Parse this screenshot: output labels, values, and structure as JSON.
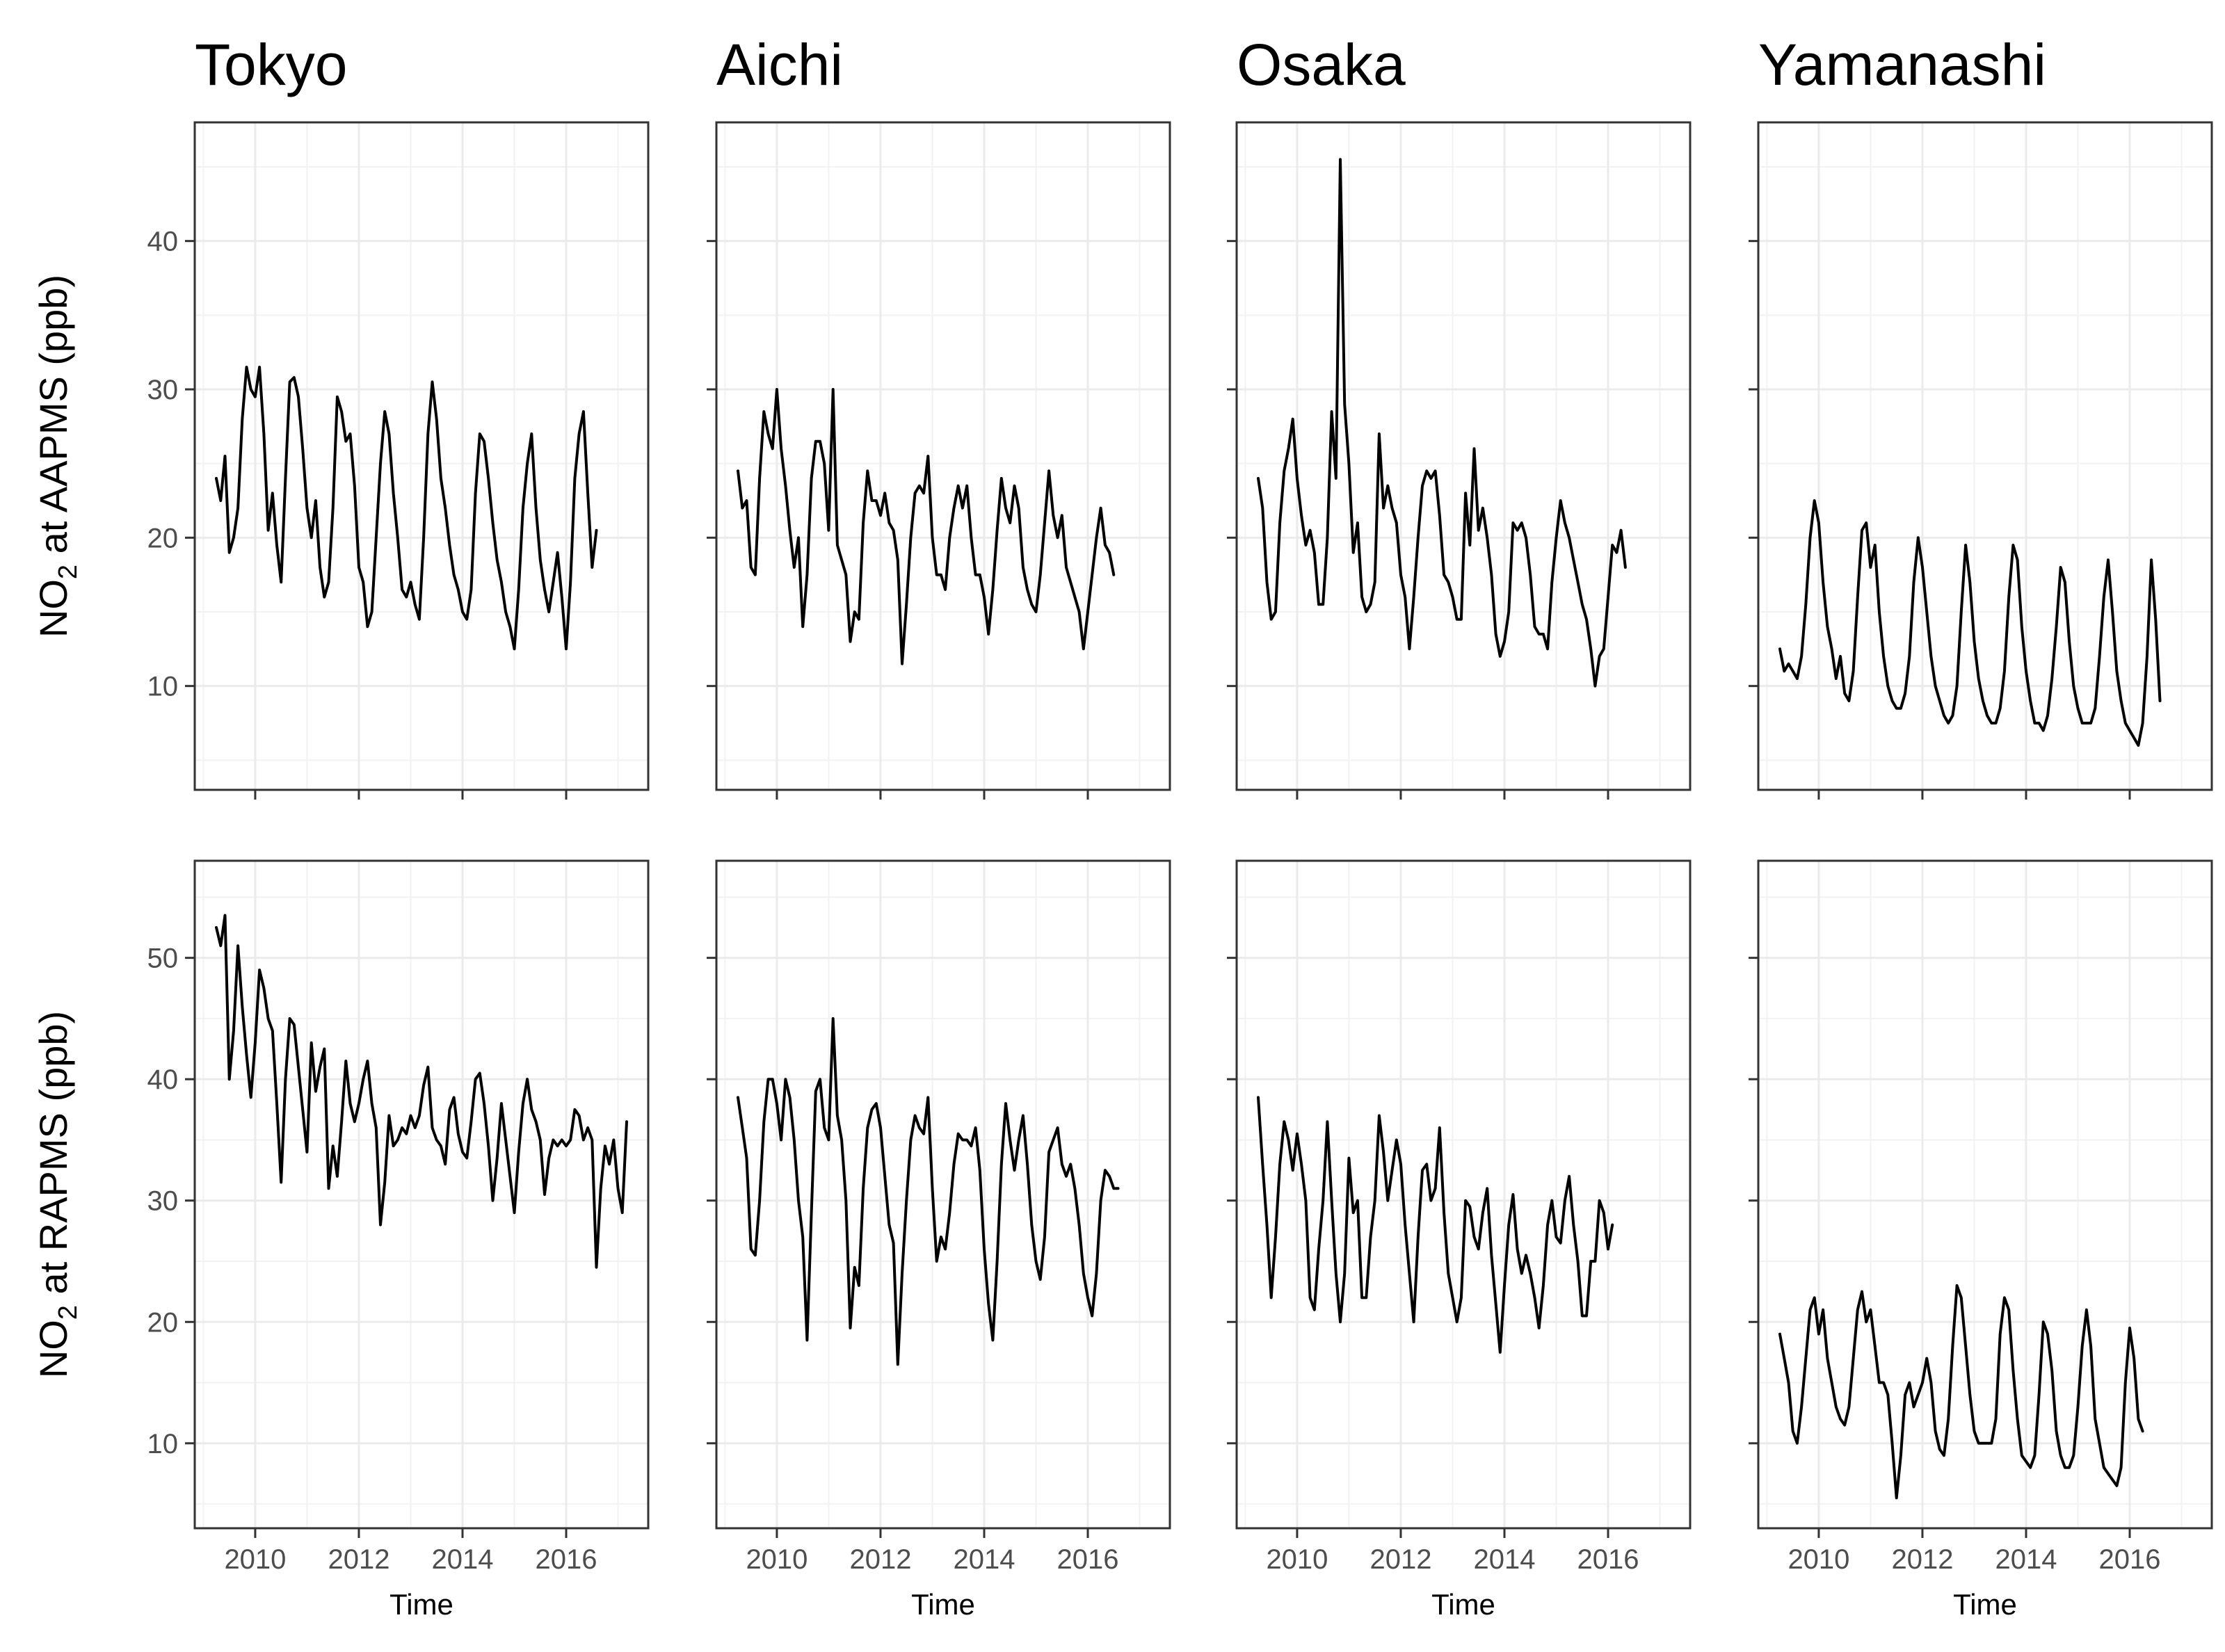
{
  "chart_data": {
    "type": "line",
    "layout": "facet-grid",
    "columns": [
      "Tokyo",
      "Aichi",
      "Osaka",
      "Yamanashi"
    ],
    "rows": [
      {
        "ylabel_main": "NO",
        "ylabel_sub": "2",
        "ylabel_rest": " at AAPMS (ppb)",
        "ylim": [
          3,
          48
        ],
        "yticks": [
          10,
          20,
          30,
          40
        ]
      },
      {
        "ylabel_main": "NO",
        "ylabel_sub": "2",
        "ylabel_rest": " at RAPMS (ppb)",
        "ylim": [
          3,
          58
        ],
        "yticks": [
          10,
          20,
          30,
          40,
          50
        ]
      }
    ],
    "xlabel": "Time",
    "xlim": [
      "2008-11",
      "2017-08"
    ],
    "xticks": [
      "2010",
      "2012",
      "2014",
      "2016"
    ],
    "grid": true,
    "line_color": "#000000",
    "x_start": "2009-04",
    "x_step": "1 month",
    "panels": [
      {
        "row": 0,
        "col": 0,
        "values": [
          24,
          22.5,
          25.5,
          19,
          20,
          22,
          28,
          31.5,
          30,
          29.5,
          31.5,
          27,
          20.5,
          23,
          19.5,
          17,
          24,
          30.5,
          30.8,
          29.5,
          26,
          22,
          20,
          22.5,
          18,
          16,
          17,
          22,
          29.5,
          28.5,
          26.5,
          27,
          23.5,
          18,
          17,
          14,
          15,
          20,
          25,
          28.5,
          27,
          23,
          20,
          16.5,
          16,
          17,
          15.5,
          14.5,
          20,
          27,
          30.5,
          28,
          24,
          22,
          19.5,
          17.5,
          16.5,
          15,
          14.5,
          16.5,
          23,
          27,
          26.5,
          24,
          21,
          18.5,
          17,
          15,
          14,
          12.5,
          16.5,
          22,
          25,
          27,
          22,
          18.5,
          16.5,
          15,
          17,
          19,
          16,
          12.5,
          17,
          24,
          27,
          28.5,
          23,
          18,
          20.5
        ]
      },
      {
        "row": 0,
        "col": 1,
        "values": [
          24.5,
          22,
          22.5,
          18,
          17.5,
          24,
          28.5,
          27,
          26,
          30,
          26,
          23.5,
          20.5,
          18,
          20,
          14,
          17.5,
          24,
          26.5,
          26.5,
          25,
          20.5,
          30,
          19.5,
          18.5,
          17.5,
          13,
          15,
          14.5,
          21,
          24.5,
          22.5,
          22.5,
          21.5,
          23,
          21,
          20.5,
          18.5,
          11.5,
          15.5,
          20,
          23,
          23.5,
          23,
          25.5,
          20,
          17.5,
          17.5,
          16.5,
          20,
          22,
          23.5,
          22,
          23.5,
          20,
          17.5,
          17.5,
          16,
          13.5,
          16.5,
          20.5,
          24,
          22,
          21,
          23.5,
          22,
          18,
          16.5,
          15.5,
          15,
          17.5,
          21,
          24.5,
          21.5,
          20,
          21.5,
          18,
          17,
          16,
          15,
          12.5,
          15,
          17.5,
          20,
          22,
          19.5,
          19,
          17.5
        ]
      },
      {
        "row": 0,
        "col": 2,
        "values": [
          24,
          22,
          17,
          14.5,
          15,
          21,
          24.5,
          26,
          28,
          24,
          21.5,
          19.5,
          20.5,
          19,
          15.5,
          15.5,
          20,
          28.5,
          24,
          45.5,
          29,
          25,
          19,
          21,
          16,
          15,
          15.5,
          17,
          27,
          22,
          23.5,
          22,
          21,
          17.5,
          16,
          12.5,
          16,
          20,
          23.5,
          24.5,
          24,
          24.5,
          21.5,
          17.5,
          17,
          16,
          14.5,
          14.5,
          23,
          19.5,
          26,
          20.5,
          22,
          20,
          17.5,
          13.5,
          12,
          13,
          15,
          21,
          20.5,
          21,
          20,
          17.5,
          14,
          13.5,
          13.5,
          12.5,
          17,
          20,
          22.5,
          21,
          20,
          18.5,
          17,
          15.5,
          14.5,
          12.5,
          10,
          12,
          12.5,
          16,
          19.5,
          19,
          20.5,
          18
        ]
      },
      {
        "row": 0,
        "col": 3,
        "values": [
          12.5,
          11,
          11.5,
          11,
          10.5,
          12,
          15.5,
          20,
          22.5,
          21,
          17,
          14,
          12.5,
          10.5,
          12,
          9.5,
          9,
          11,
          16,
          20.5,
          21,
          18,
          19.5,
          15,
          12,
          10,
          9,
          8.5,
          8.5,
          9.5,
          12,
          17,
          20,
          18,
          15,
          12,
          10,
          9,
          8,
          7.5,
          8,
          10,
          15,
          19.5,
          17,
          13,
          10.5,
          9,
          8,
          7.5,
          7.5,
          8.5,
          11,
          16,
          19.5,
          18.5,
          14,
          11,
          9,
          7.5,
          7.5,
          7,
          8,
          10.5,
          14,
          18,
          17,
          13,
          10,
          8.5,
          7.5,
          7.5,
          7.5,
          8.5,
          12,
          16,
          18.5,
          15,
          11,
          9,
          7.5,
          7,
          6.5,
          6,
          7.5,
          12,
          18.5,
          14.5,
          9
        ]
      },
      {
        "row": 1,
        "col": 0,
        "values": [
          52.5,
          51,
          53.5,
          40,
          44,
          51,
          46,
          42,
          38.5,
          43,
          49,
          47.5,
          45,
          44,
          38,
          31.5,
          40,
          45,
          44.5,
          41,
          37.5,
          34,
          43,
          39,
          41,
          42.5,
          31,
          34.5,
          32,
          36.5,
          41.5,
          38,
          36.5,
          38,
          40,
          41.5,
          38,
          36,
          28,
          31.5,
          37,
          34.5,
          35,
          36,
          35.5,
          37,
          36,
          37,
          39.5,
          41,
          36,
          35,
          34.5,
          33,
          37.5,
          38.5,
          35.5,
          34,
          33.5,
          36.5,
          40,
          40.5,
          38,
          34.5,
          30,
          33.5,
          38,
          35,
          32,
          29,
          34,
          38,
          40,
          37.5,
          36.5,
          35,
          30.5,
          33.5,
          35,
          34.5,
          35,
          34.5,
          35,
          37.5,
          37,
          35,
          36,
          35,
          24.5,
          31,
          34.5,
          33,
          35,
          31,
          29,
          36.5
        ]
      },
      {
        "row": 1,
        "col": 1,
        "values": [
          38.5,
          36,
          33.5,
          26,
          25.5,
          30,
          36.5,
          40,
          40,
          38,
          35,
          40,
          38.5,
          35,
          30,
          27,
          18.5,
          29,
          39,
          40,
          36,
          35,
          45,
          37,
          35,
          30,
          19.5,
          24.5,
          23,
          31,
          36,
          37.5,
          38,
          36,
          32,
          28,
          26.5,
          16.5,
          24,
          30,
          35,
          37,
          36,
          35.5,
          38.5,
          31,
          25,
          27,
          26,
          29,
          33,
          35.5,
          35,
          35,
          34.5,
          36,
          32.5,
          26,
          21.5,
          18.5,
          25,
          33,
          38,
          35,
          32.5,
          35,
          37,
          33,
          28,
          25,
          23.5,
          27,
          34,
          35,
          36,
          33,
          32,
          33,
          31,
          28,
          24,
          22,
          20.5,
          24,
          30,
          32.5,
          32,
          31,
          31
        ]
      },
      {
        "row": 1,
        "col": 2,
        "values": [
          38.5,
          33,
          28,
          22,
          27,
          33,
          36.5,
          35,
          32.5,
          35.5,
          33,
          30,
          22,
          21,
          26,
          30,
          36.5,
          30,
          24,
          20,
          24,
          33.5,
          29,
          30,
          22,
          22,
          27,
          30,
          37,
          34,
          30,
          32.5,
          35,
          33,
          28,
          24,
          20,
          27,
          32.5,
          33,
          30,
          31,
          36,
          29,
          24,
          22,
          20,
          22,
          30,
          29.5,
          27,
          26,
          29,
          31,
          25.5,
          21.5,
          17.5,
          23,
          28,
          30.5,
          26,
          24,
          25.5,
          24,
          22,
          19.5,
          23,
          28,
          30,
          27,
          26.5,
          30,
          32,
          28,
          25,
          20.5,
          20.5,
          25,
          25,
          30,
          29,
          26,
          28
        ]
      },
      {
        "row": 1,
        "col": 3,
        "values": [
          19,
          17,
          15,
          11,
          10,
          13,
          17,
          21,
          22,
          19,
          21,
          17,
          15,
          13,
          12,
          11.5,
          13,
          17,
          21,
          22.5,
          20,
          21,
          18,
          15,
          15,
          14,
          10,
          5.5,
          9,
          14,
          15,
          13,
          14,
          15,
          17,
          15,
          11,
          9.5,
          9,
          12,
          18,
          23,
          22,
          18,
          14,
          11,
          10,
          10,
          10,
          10,
          12,
          19,
          22,
          21,
          16,
          12,
          9,
          8.5,
          8,
          9,
          14,
          20,
          19,
          16,
          11,
          9,
          8,
          8,
          9,
          13,
          18,
          21,
          18,
          12,
          10,
          8,
          7.5,
          7,
          6.5,
          8,
          15,
          19.5,
          17,
          12,
          11
        ]
      }
    ]
  }
}
